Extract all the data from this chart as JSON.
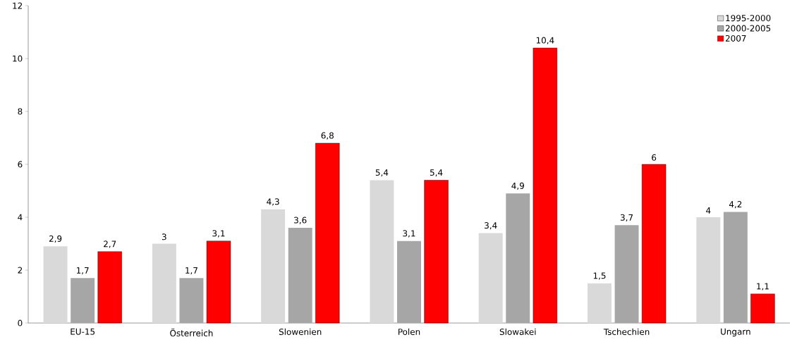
{
  "chart_data": {
    "type": "bar",
    "categories": [
      "EU-15",
      "Österreich",
      "Slowenien",
      "Polen",
      "Slowakei",
      "Tschechien",
      "Ungarn"
    ],
    "series": [
      {
        "name": "1995-2000",
        "color": "#d9d9d9",
        "values": [
          2.9,
          3,
          4.3,
          5.4,
          3.4,
          1.5,
          4
        ],
        "value_labels": [
          "2,9",
          "3",
          "4,3",
          "5,4",
          "3,4",
          "1,5",
          "4"
        ]
      },
      {
        "name": "2000-2005",
        "color": "#a6a6a6",
        "values": [
          1.7,
          1.7,
          3.6,
          3.1,
          4.9,
          3.7,
          4.2
        ],
        "value_labels": [
          "1,7",
          "1,7",
          "3,6",
          "3,1",
          "4,9",
          "3,7",
          "4,2"
        ]
      },
      {
        "name": "2007",
        "color": "#ff0000",
        "values": [
          2.7,
          3.1,
          6.8,
          5.4,
          10.4,
          6,
          1.1
        ],
        "value_labels": [
          "2,7",
          "3,1",
          "6,8",
          "5,4",
          "10,4",
          "6",
          "1,1"
        ]
      }
    ],
    "ylim": [
      0,
      12
    ],
    "yticks": [
      0,
      2,
      4,
      6,
      8,
      10,
      12
    ],
    "grid": false,
    "legend": "top right"
  }
}
